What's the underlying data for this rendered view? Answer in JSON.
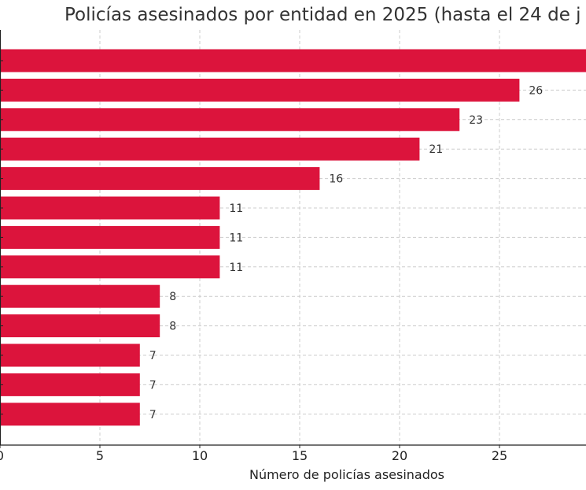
{
  "chart_data": {
    "type": "bar",
    "orientation": "horizontal",
    "title": "Policías asesinados por entidad en 2025 (hasta el 24 de j",
    "xlabel": "Número de policías asesinados",
    "ylabel": "",
    "values": [
      30,
      26,
      23,
      21,
      16,
      11,
      11,
      11,
      8,
      8,
      7,
      7,
      7
    ],
    "data_labels": [
      "",
      "26",
      "23",
      "21",
      "16",
      "11",
      "11",
      "11",
      "8",
      "8",
      "7",
      "7",
      "7"
    ],
    "xticks": [
      "0",
      "5",
      "10",
      "15",
      "20",
      "25"
    ],
    "xlim": [
      0,
      29.3
    ],
    "grid": true,
    "bar_color": "#DC143C"
  }
}
